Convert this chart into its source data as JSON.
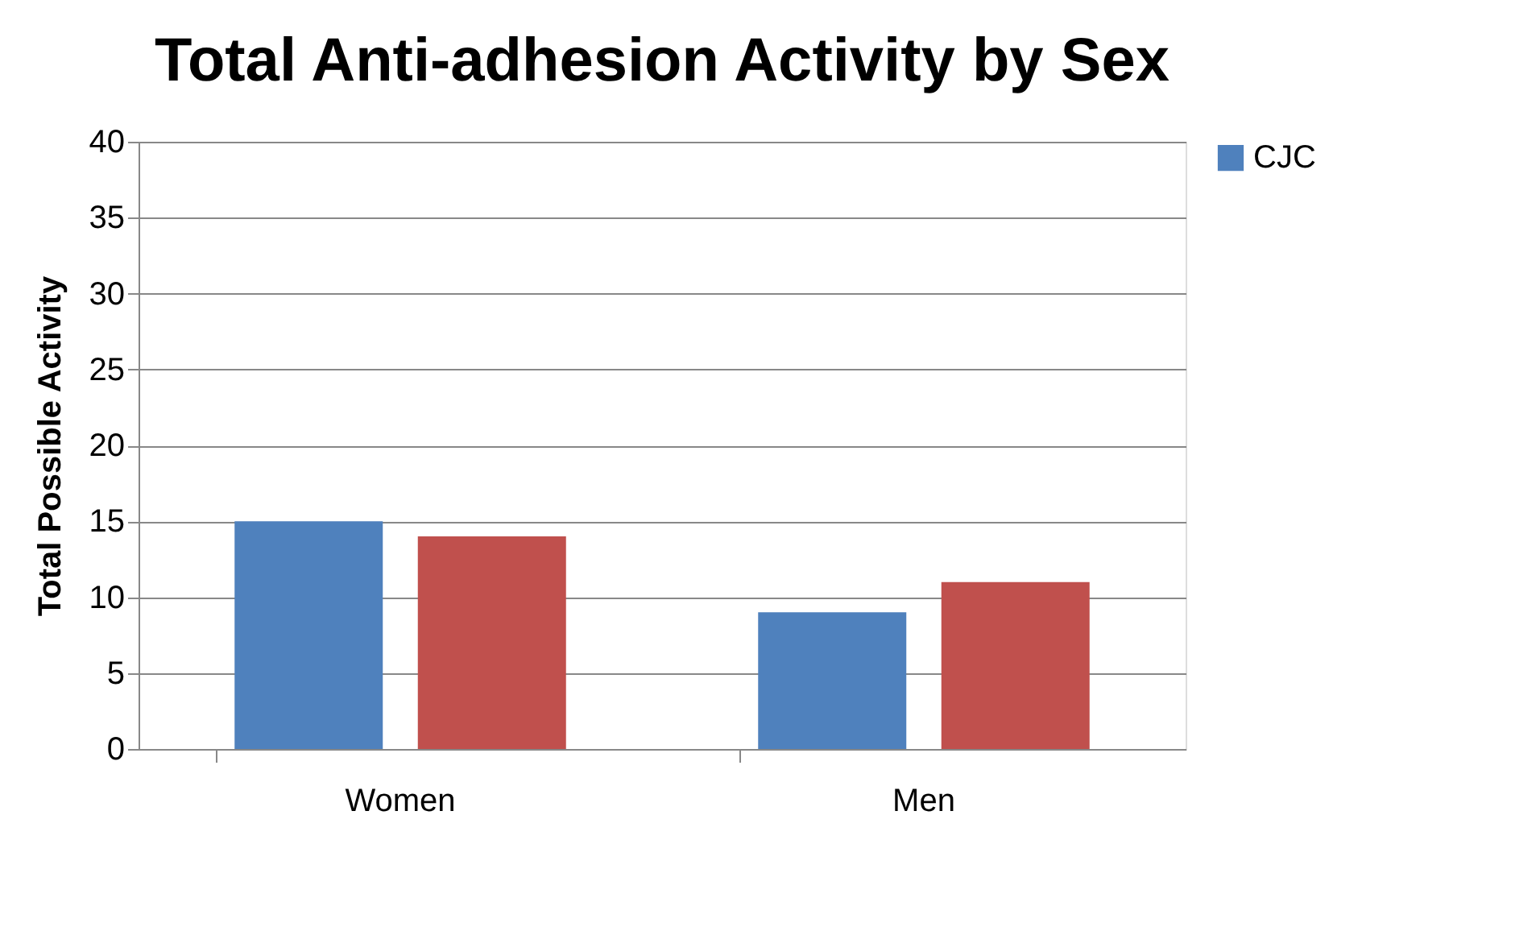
{
  "chart_data": {
    "type": "bar",
    "title": "Total Anti-adhesion Activity by Sex",
    "ylabel": "Total Possible Activity",
    "categories": [
      "Women",
      "Men"
    ],
    "series": [
      {
        "name": "CJC",
        "color": "#4f81bd",
        "values": [
          15,
          9
        ]
      },
      {
        "color": "#c0504d",
        "values": [
          14,
          11
        ]
      }
    ],
    "ylim": [
      0,
      40
    ],
    "yticks": [
      0,
      5,
      10,
      15,
      20,
      25,
      30,
      35,
      40
    ],
    "grid": "y",
    "legend": "right"
  }
}
